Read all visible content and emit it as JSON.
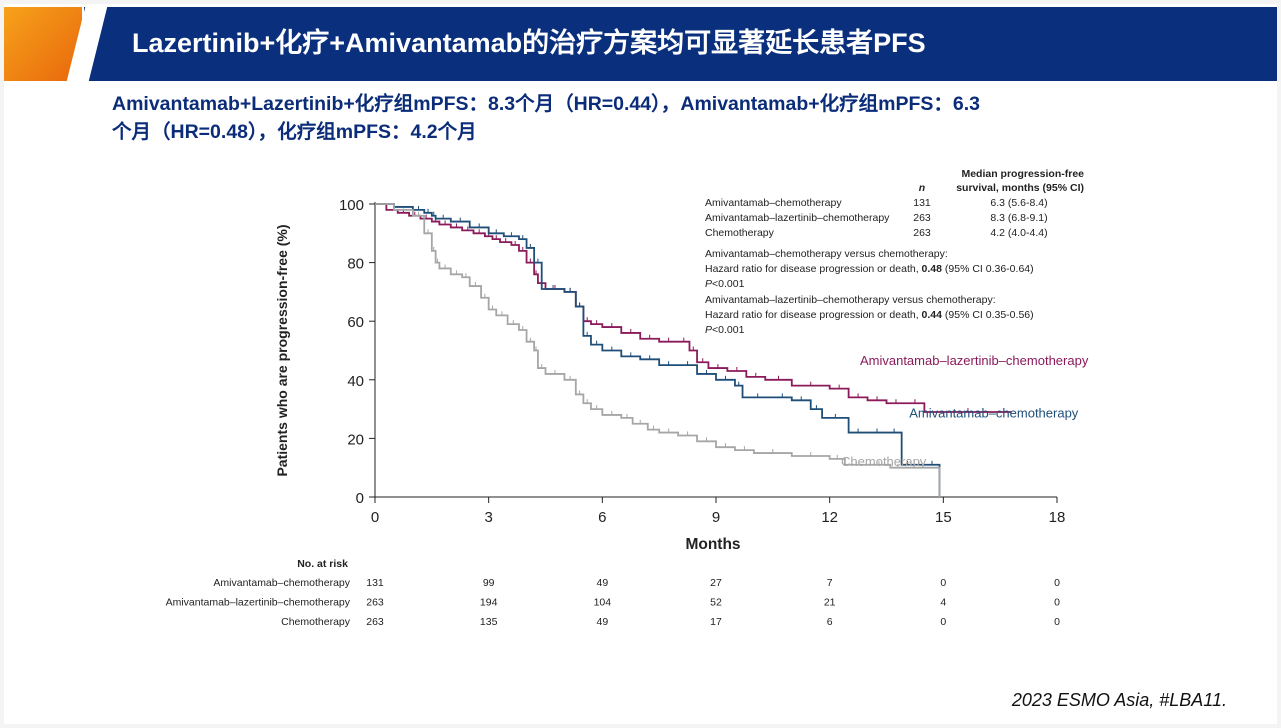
{
  "slide": {
    "title": "Lazertinib+化疗+Amivantamab的治疗方案均可显著延长患者PFS",
    "subtitle_line1": "Amivantamab+Lazertinib+化疗组mPFS：8.3个月（HR=0.44），Amivantamab+化疗组mPFS：6.3",
    "subtitle_line2": "个月（HR=0.48），化疗组mPFS：4.2个月",
    "citation": "2023 ESMO Asia, #LBA11."
  },
  "colors": {
    "title_bar": "#0a2f7c",
    "subtitle_text": "#0b2c79",
    "ami_chemo": "#1f4e79",
    "ami_laz_chemo": "#8b1a5a",
    "chemo": "#a6a6a6"
  },
  "chart_data": {
    "type": "line",
    "subtype": "kaplan-meier",
    "xlabel": "Months",
    "ylabel": "Patients who are progression-free (%)",
    "xlim": [
      0,
      18
    ],
    "ylim": [
      0,
      100
    ],
    "xticks": [
      0,
      3,
      6,
      9,
      12,
      15,
      18
    ],
    "yticks": [
      0,
      20,
      40,
      60,
      80,
      100
    ],
    "grid": false,
    "series": [
      {
        "name": "Amivantamab–lazertinib–chemotherapy",
        "color": "#8b1a5a",
        "x": [
          0,
          0.3,
          0.6,
          0.9,
          1.2,
          1.5,
          1.7,
          2.0,
          2.3,
          2.6,
          2.9,
          3.1,
          3.3,
          3.6,
          3.8,
          4.0,
          4.2,
          4.3,
          4.5,
          5.0,
          5.3,
          5.5,
          5.7,
          6.0,
          6.5,
          7.0,
          7.5,
          8.0,
          8.3,
          8.5,
          8.8,
          9.3,
          9.8,
          10.3,
          11.0,
          12.0,
          12.5,
          13.0,
          13.5,
          14.0,
          14.5,
          16.8
        ],
        "y": [
          100,
          98,
          97,
          96,
          95,
          94,
          93,
          92,
          91,
          90,
          89,
          88,
          87,
          86,
          84,
          80,
          76,
          73,
          71,
          70,
          65,
          60,
          59,
          58,
          56,
          54,
          53,
          53,
          50,
          46,
          44,
          43,
          41,
          40,
          38,
          37,
          34,
          33,
          32,
          32,
          29,
          29
        ]
      },
      {
        "name": "Amivantamab–chemotherapy",
        "color": "#1f4e79",
        "x": [
          0,
          0.5,
          1.0,
          1.3,
          1.5,
          1.6,
          2.0,
          2.5,
          3.0,
          3.4,
          3.8,
          4.0,
          4.2,
          4.4,
          5.0,
          5.3,
          5.5,
          5.7,
          6.0,
          6.5,
          7.0,
          7.5,
          8.0,
          8.5,
          9.0,
          9.5,
          9.7,
          10.5,
          11.0,
          11.5,
          11.8,
          12.5,
          13.0,
          13.5,
          13.9,
          14.2,
          14.5,
          14.9
        ],
        "y": [
          100,
          99,
          98,
          97,
          96,
          95,
          94,
          92,
          90,
          89,
          88,
          85,
          80,
          71,
          70,
          65,
          55,
          52,
          50,
          48,
          47,
          45,
          45,
          42,
          40,
          38,
          34,
          34,
          33,
          30,
          27,
          22,
          22,
          22,
          11,
          11,
          11,
          0
        ]
      },
      {
        "name": "Chemotherapy",
        "color": "#a6a6a6",
        "x": [
          0,
          0.5,
          1.0,
          1.3,
          1.5,
          1.6,
          1.7,
          2.0,
          2.3,
          2.5,
          2.8,
          3.0,
          3.2,
          3.5,
          3.8,
          4.0,
          4.2,
          4.3,
          4.5,
          5.0,
          5.3,
          5.5,
          5.7,
          6.0,
          6.5,
          6.8,
          7.2,
          7.5,
          8.0,
          8.5,
          9.0,
          9.5,
          10.0,
          11.0,
          12.0,
          12.4,
          13.0,
          13.6,
          14.0,
          14.9
        ],
        "y": [
          100,
          98,
          96,
          90,
          84,
          80,
          78,
          76,
          75,
          72,
          68,
          64,
          62,
          59,
          57,
          53,
          50,
          44,
          42,
          40,
          35,
          32,
          30,
          28,
          27,
          25,
          23,
          22,
          21,
          19,
          17,
          16,
          15,
          14,
          13,
          11,
          11,
          10,
          10,
          0
        ]
      }
    ],
    "series_labels": [
      {
        "text": "Amivantamab–lazertinib–chemotherapy",
        "x": 12.8,
        "y": 40,
        "color": "#8b1a5a"
      },
      {
        "text": "Amivantamab–chemotherapy",
        "x": 14.1,
        "y": 22,
        "color": "#1f4e79"
      },
      {
        "text": "Chemotherapy",
        "x": 12.3,
        "y": 5.5,
        "color": "#a6a6a6"
      }
    ],
    "legend_table": {
      "header_n": "n",
      "header_median_line1": "Median progression-free",
      "header_median_line2": "survival, months (95% CI)",
      "rows": [
        {
          "arm": "Amivantamab–chemotherapy",
          "n": "131",
          "median": "6.3 (5.6-8.4)"
        },
        {
          "arm": "Amivantamab–lazertinib–chemotherapy",
          "n": "263",
          "median": "8.3 (6.8-9.1)"
        },
        {
          "arm": "Chemotherapy",
          "n": "263",
          "median": "4.2 (4.0-4.4)"
        }
      ]
    },
    "hazard_notes": [
      {
        "line1": "Amivantamab–chemotherapy versus chemotherapy:",
        "line2_prefix": "Hazard ratio for disease progression or death, ",
        "line2_hr": "0.48",
        "line2_suffix": " (95% CI 0.36-0.64)",
        "p_italic": "P",
        "p_rest": "<0.001"
      },
      {
        "line1": "Amivantamab–lazertinib–chemotherapy versus chemotherapy:",
        "line2_prefix": "Hazard ratio for disease progression or death, ",
        "line2_hr": "0.44",
        "line2_suffix": " (95% CI 0.35-0.56)",
        "p_italic": "P",
        "p_rest": "<0.001"
      }
    ],
    "risk_table": {
      "title": "No. at risk",
      "times": [
        0,
        3,
        6,
        9,
        12,
        15,
        18
      ],
      "rows": [
        {
          "label": "Amivantamab–chemotherapy",
          "values": [
            "131",
            "99",
            "49",
            "27",
            "7",
            "0",
            "0"
          ]
        },
        {
          "label": "Amivantamab–lazertinib–chemotherapy",
          "values": [
            "263",
            "194",
            "104",
            "52",
            "21",
            "4",
            "0"
          ]
        },
        {
          "label": "Chemotherapy",
          "values": [
            "263",
            "135",
            "49",
            "17",
            "6",
            "0",
            "0"
          ]
        }
      ]
    }
  }
}
